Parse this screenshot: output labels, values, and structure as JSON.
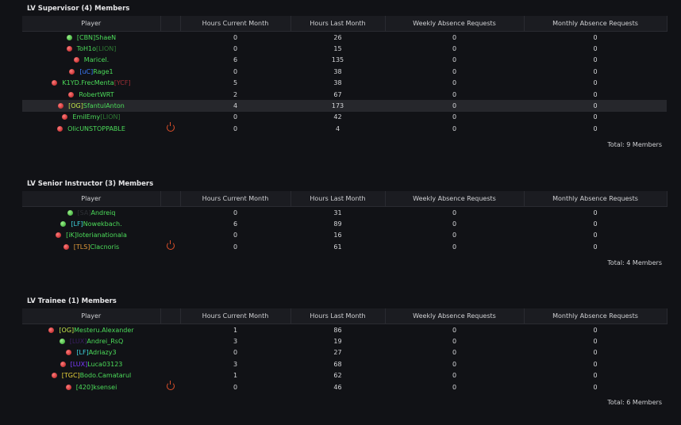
{
  "sections": [
    {
      "title": "LV Supervisor (4) Members",
      "columns": [
        "Player",
        "Hours Current Month",
        "Hours Last Month",
        "Weekly Absence Requests",
        "Monthly Absence Requests"
      ],
      "rows": [
        {
          "status": "online",
          "tag": "[CBN]",
          "tag_color": "#4cdc5a",
          "name": "ShaeN",
          "cells": [
            0,
            26,
            0,
            0
          ]
        },
        {
          "status": "offline",
          "name": "ToH1o",
          "tag": "[LION]",
          "tag_after": true,
          "tag_color": "#2f7a34",
          "cells": [
            0,
            15,
            0,
            0
          ]
        },
        {
          "status": "offline",
          "name": "Maricel.",
          "cells": [
            6,
            135,
            0,
            0
          ]
        },
        {
          "status": "offline",
          "tag": "[uC]",
          "tag_color": "#3b7cff",
          "name": "Rage1",
          "cells": [
            0,
            38,
            0,
            0
          ]
        },
        {
          "status": "offline",
          "name": "K1YD.FrecMenta",
          "tag": "[YCF]",
          "tag_after": true,
          "tag_color": "#9b2f35",
          "cells": [
            5,
            38,
            0,
            0
          ]
        },
        {
          "status": "offline",
          "name": "RobertWRT",
          "cells": [
            2,
            67,
            0,
            0
          ]
        },
        {
          "status": "offline",
          "tag": "[OG]",
          "tag_color": "#c5e84a",
          "name": "SfantulAnton",
          "highlighted": true,
          "cells": [
            4,
            173,
            0,
            0
          ]
        },
        {
          "status": "offline",
          "name": "EmilEmy",
          "tag": "[LION]",
          "tag_after": true,
          "tag_color": "#2f7a34",
          "cells": [
            0,
            42,
            0,
            0
          ]
        },
        {
          "status": "offline",
          "name": "OlicUNSTOPPABLE",
          "power": true,
          "cells": [
            0,
            4,
            0,
            0
          ]
        }
      ],
      "total": "Total: 9 Members"
    },
    {
      "title": "LV Senior Instructor (3) Members",
      "columns": [
        "Player",
        "Hours Current Month",
        "Hours Last Month",
        "Weekly Absence Requests",
        "Monthly Absence Requests"
      ],
      "rows": [
        {
          "status": "online",
          "tag": "[SA]",
          "tag_color": "#2c2e33",
          "name": "Andreiq",
          "cells": [
            0,
            31,
            0,
            0
          ]
        },
        {
          "status": "online",
          "tag": "[LF]",
          "tag_color": "#3fd6e0",
          "name": "Nowekbach.",
          "cells": [
            6,
            89,
            0,
            0
          ]
        },
        {
          "status": "offline",
          "tag": "[iK]",
          "tag_color": "#4cdc5a",
          "name": "Ioterianationala",
          "cells": [
            0,
            16,
            0,
            0
          ]
        },
        {
          "status": "offline",
          "tag": "[TLS]",
          "tag_color": "#e09a3a",
          "name": "Clacnoris",
          "power": true,
          "cells": [
            0,
            61,
            0,
            0
          ]
        }
      ],
      "total": "Total: 4 Members"
    },
    {
      "title": "LV Trainee (1) Members",
      "columns": [
        "Player",
        "Hours Current Month",
        "Hours Last Month",
        "Weekly Absence Requests",
        "Monthly Absence Requests"
      ],
      "rows": [
        {
          "status": "offline",
          "tag": "[OG]",
          "tag_color": "#c5e84a",
          "name": "Mesteru.Alexander",
          "cells": [
            1,
            86,
            0,
            0
          ]
        },
        {
          "status": "online",
          "tag": "[LUX]",
          "tag_color": "#3a1f63",
          "name": "Andrei_RsQ",
          "cells": [
            3,
            19,
            0,
            0
          ]
        },
        {
          "status": "offline",
          "tag": "[LF]",
          "tag_color": "#3fd6e0",
          "name": "Adriazy3",
          "cells": [
            0,
            27,
            0,
            0
          ]
        },
        {
          "status": "offline",
          "tag": "[LUX]",
          "tag_color": "#7a3cff",
          "name": "Luca03123",
          "cells": [
            3,
            68,
            0,
            0
          ]
        },
        {
          "status": "offline",
          "tag": "[TGC]",
          "tag_color": "#e8d23a",
          "name": "Bodo.Camatarul",
          "cells": [
            1,
            62,
            0,
            0
          ]
        },
        {
          "status": "offline",
          "tag": "[420]",
          "tag_color": "#4cdc5a",
          "name": "ksensei",
          "power": true,
          "cells": [
            0,
            46,
            0,
            0
          ]
        }
      ],
      "total": "Total: 6 Members"
    }
  ]
}
